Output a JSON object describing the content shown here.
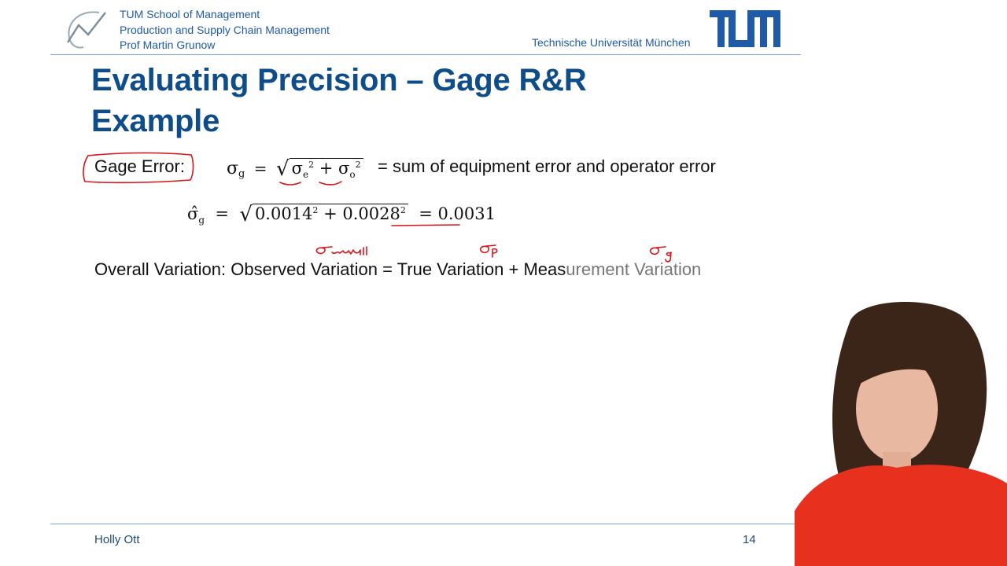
{
  "header": {
    "school": "TUM School of Management",
    "chair": "Production and Supply Chain Management",
    "professor": "Prof Martin Grunow",
    "university": "Technische Universität München"
  },
  "slide": {
    "title_line1": "Evaluating Precision – Gage R&R",
    "title_line2": "Example",
    "gage_error_label": "Gage Error:",
    "gage_error_description": "= sum of equipment error and operator error",
    "estimate": {
      "term1": "0.0014",
      "term2": "0.0028",
      "result": "0.0031"
    },
    "overall_variation": {
      "label": "Overall Variation:",
      "observed": "Observed Variation",
      "equals": "=",
      "true_variation": "True Variation",
      "plus": "+",
      "measurement_a": "Meas",
      "measurement_b": "urement Variation"
    }
  },
  "footer": {
    "presenter": "Holly Ott",
    "page_number": "14"
  },
  "colors": {
    "brand_blue": "#0e4c8a",
    "header_blue": "#1f5aa6",
    "ink_red": "#d9141a",
    "sweater_red": "#e8301e"
  }
}
